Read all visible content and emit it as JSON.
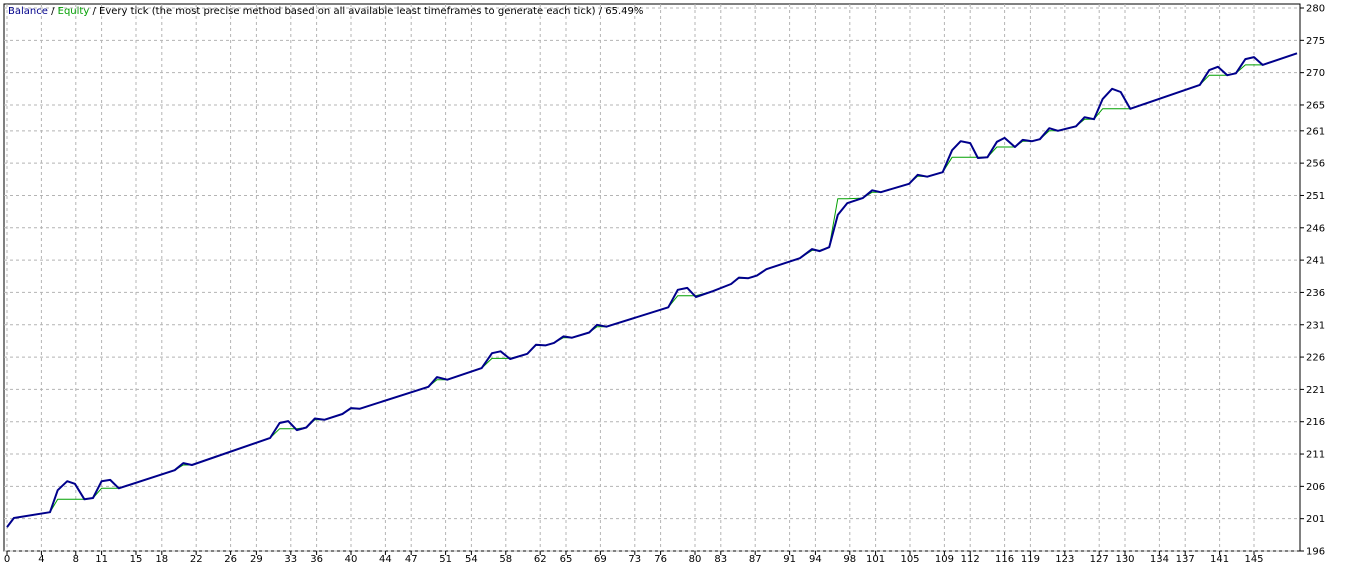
{
  "chart_data": {
    "type": "line",
    "legend": {
      "separator": "/",
      "subtitle": "Every tick (the most precise method based on all available least timeframes to generate each tick)",
      "quality": "65.49%"
    },
    "x": [
      0,
      0.8,
      5,
      5.9,
      7,
      7.9,
      9,
      10,
      11,
      12,
      13,
      19.5,
      20.5,
      21.5,
      30.6,
      31.7,
      32.7,
      33.7,
      34.8,
      35.8,
      36.9,
      39,
      40,
      41,
      49,
      50,
      51.2,
      55.2,
      56.4,
      57.4,
      58.5,
      60.5,
      61.5,
      62.6,
      63.6,
      64.7,
      65.7,
      67.7,
      68.6,
      69.7,
      76.9,
      78,
      79.1,
      80.1,
      82.1,
      84.2,
      85.1,
      86.2,
      87.2,
      88.3,
      92.2,
      93.6,
      94.5,
      95.6,
      96.6,
      97.7,
      99.5,
      100.6,
      101.6,
      104.9,
      105.9,
      107,
      108.8,
      109.9,
      110.9,
      112,
      112.9,
      114,
      115.1,
      116,
      117.2,
      118.1,
      119.2,
      120.1,
      121.2,
      122.2,
      124.3,
      125.3,
      126.4,
      127.4,
      128.5,
      129.5,
      130.6,
      138.7,
      139.8,
      140.8,
      141.9,
      142.9,
      144,
      145,
      146,
      150
    ],
    "series": [
      {
        "name": "Equity",
        "color": "#00a000",
        "width": 1,
        "values": [
          199.7,
          201.1,
          202,
          204,
          204,
          204,
          204,
          204.2,
          205.7,
          205.7,
          205.7,
          208.5,
          209.3,
          209.3,
          213.5,
          214.9,
          214.9,
          214.9,
          215.1,
          216.3,
          216.3,
          217.2,
          218,
          218,
          221.4,
          222.5,
          222.5,
          224.3,
          225.8,
          225.8,
          225.8,
          226.5,
          227.8,
          227.8,
          228.2,
          229,
          229,
          229.8,
          230.7,
          230.7,
          233.7,
          235.5,
          235.5,
          235.5,
          236.2,
          237.3,
          238.2,
          238.2,
          238.6,
          239.6,
          241.3,
          242.5,
          242.5,
          243,
          250.5,
          250.5,
          250.6,
          251.5,
          251.5,
          252.8,
          254,
          253.9,
          254.6,
          256.9,
          256.9,
          256.9,
          256.9,
          256.9,
          258.5,
          258.5,
          258.5,
          259.4,
          259.4,
          259.7,
          261,
          261,
          261.7,
          262.8,
          262.8,
          264.4,
          264.4,
          264.4,
          264.4,
          268.1,
          269.6,
          269.6,
          269.6,
          269.9,
          271.2,
          271.2,
          271.2,
          273
        ]
      },
      {
        "name": "Balance",
        "color": "#00008b",
        "width": 2,
        "values": [
          199.7,
          201.1,
          202,
          205.4,
          206.8,
          206.4,
          204,
          204.2,
          206.8,
          207,
          205.7,
          208.5,
          209.6,
          209.3,
          213.5,
          215.8,
          216.1,
          214.7,
          215.1,
          216.5,
          216.3,
          217.2,
          218.1,
          218,
          221.4,
          222.9,
          222.5,
          224.3,
          226.6,
          226.9,
          225.7,
          226.5,
          227.9,
          227.8,
          228.2,
          229.2,
          229,
          229.8,
          231,
          230.7,
          233.7,
          236.4,
          236.7,
          235.3,
          236.2,
          237.3,
          238.3,
          238.2,
          238.6,
          239.6,
          241.3,
          242.7,
          242.4,
          243,
          248,
          249.8,
          250.6,
          251.8,
          251.5,
          252.8,
          254.2,
          253.9,
          254.6,
          258,
          259.4,
          259.1,
          256.8,
          256.9,
          259.3,
          259.9,
          258.5,
          259.6,
          259.4,
          259.7,
          261.4,
          261,
          261.7,
          263.1,
          262.8,
          265.9,
          267.5,
          267,
          264.4,
          268.1,
          270.4,
          270.9,
          269.6,
          269.9,
          272.1,
          272.4,
          271.2,
          273
        ]
      }
    ],
    "xlim": [
      0,
      150
    ],
    "xticks": [
      0,
      4,
      8,
      11,
      15,
      18,
      22,
      26,
      29,
      33,
      36,
      40,
      44,
      47,
      51,
      54,
      58,
      62,
      65,
      69,
      73,
      76,
      80,
      83,
      87,
      91,
      94,
      98,
      101,
      105,
      109,
      112,
      116,
      119,
      123,
      127,
      130,
      134,
      137,
      141,
      145
    ],
    "ylim": [
      196,
      280
    ],
    "yticks": [
      196,
      201,
      206,
      211,
      216,
      221,
      226,
      231,
      236,
      241,
      246,
      251,
      256,
      261,
      265,
      270,
      275,
      280
    ],
    "grid": true
  }
}
